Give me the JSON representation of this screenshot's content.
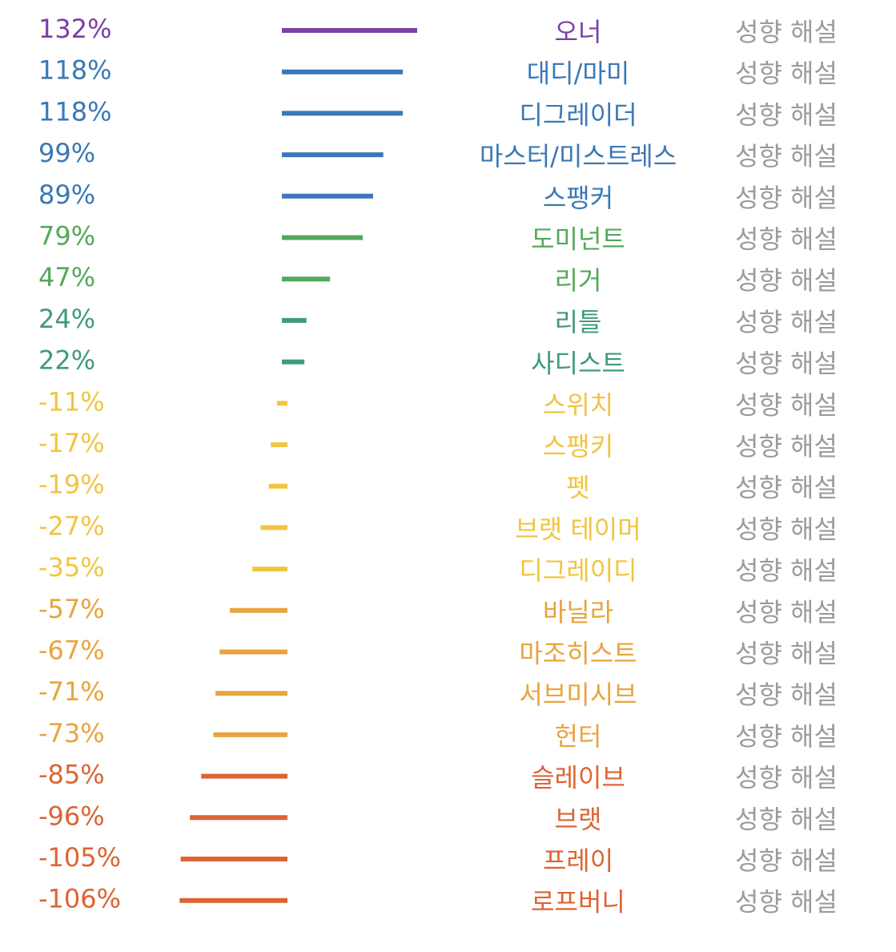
{
  "chart_data": {
    "type": "bar",
    "orientation": "horizontal",
    "value_suffix": "%",
    "row_action_label": "성향 해설",
    "colors": {
      "purple": "#7b3fa6",
      "blue": "#3b78b5",
      "green": "#54a85a",
      "teal": "#3f9a7c",
      "yellow": "#f1c541",
      "orange": "#e8a43d",
      "red": "#dc6432",
      "gray": "#9b9b9b"
    },
    "categories": [
      "오너",
      "대디/마미",
      "디그레이더",
      "마스터/미스트레스",
      "스팽커",
      "도미넌트",
      "리거",
      "리틀",
      "사디스트",
      "스위치",
      "스팽키",
      "펫",
      "브랫 테이머",
      "디그레이디",
      "바닐라",
      "마조히스트",
      "서브미시브",
      "헌터",
      "슬레이브",
      "브랫",
      "프레이",
      "로프버니"
    ],
    "values": [
      132,
      118,
      118,
      99,
      89,
      79,
      47,
      24,
      22,
      -11,
      -17,
      -19,
      -27,
      -35,
      -57,
      -67,
      -71,
      -73,
      -85,
      -96,
      -105,
      -106
    ],
    "row_colors": [
      "purple",
      "blue",
      "blue",
      "blue",
      "blue",
      "green",
      "green",
      "teal",
      "teal",
      "yellow",
      "yellow",
      "yellow",
      "yellow",
      "yellow",
      "orange",
      "orange",
      "orange",
      "orange",
      "red",
      "red",
      "red",
      "red"
    ]
  }
}
